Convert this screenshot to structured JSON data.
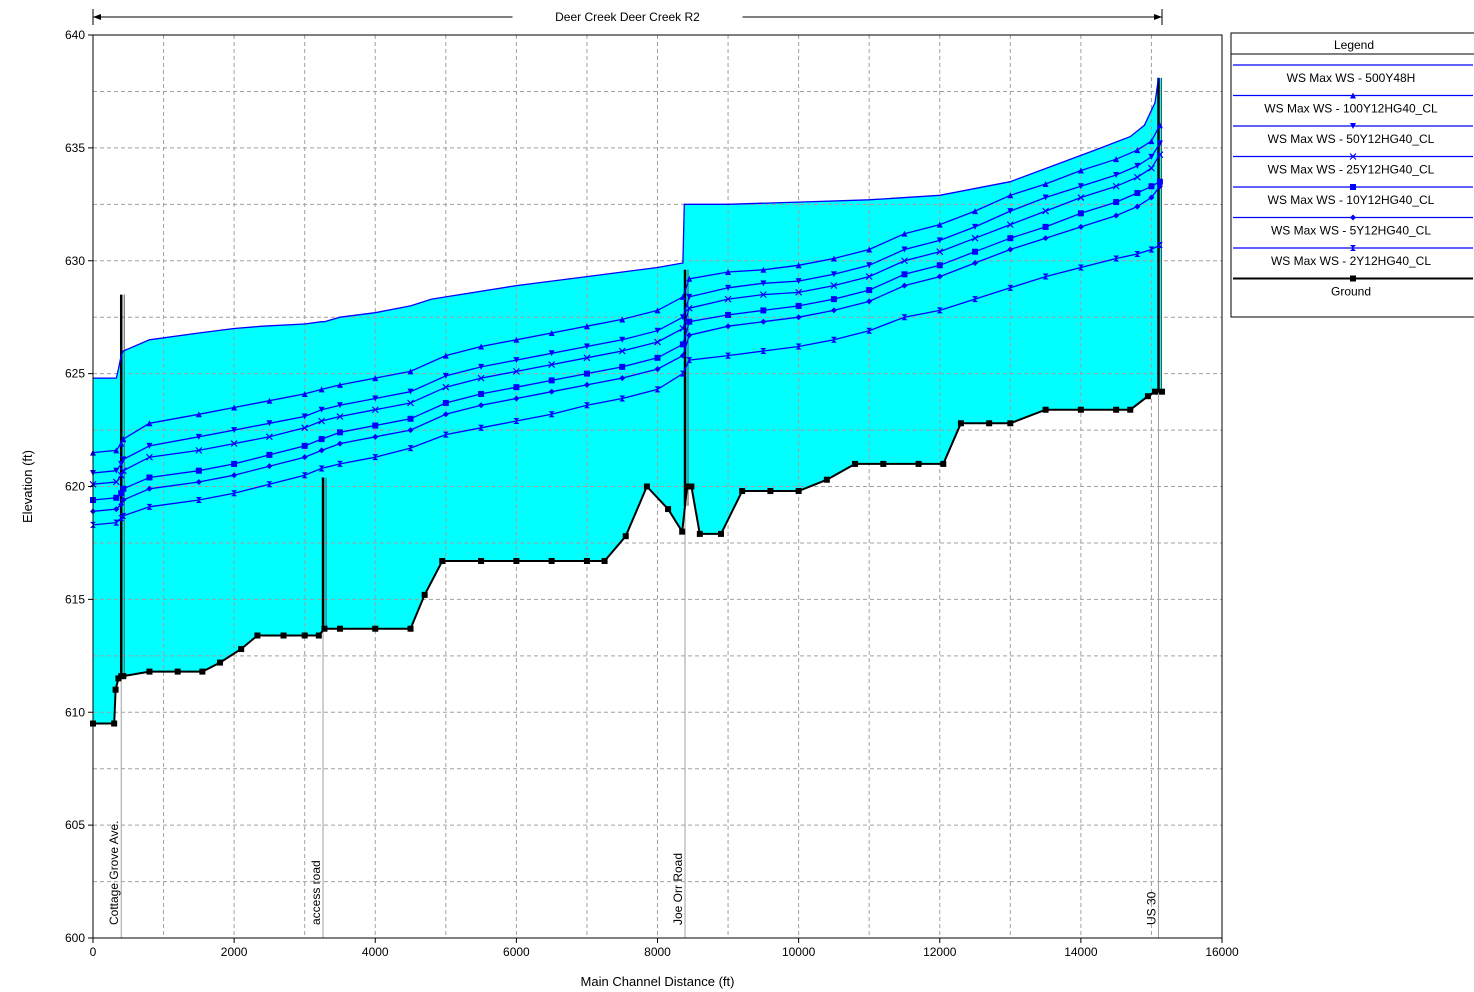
{
  "chart_data": {
    "type": "line",
    "title": "Deer Creek Deer Creek R2",
    "xlabel": "Main Channel Distance (ft)",
    "ylabel": "Elevation (ft)",
    "xlim": [
      0,
      16000
    ],
    "ylim": [
      600,
      640
    ],
    "xticks": [
      0,
      2000,
      4000,
      6000,
      8000,
      10000,
      12000,
      14000,
      16000
    ],
    "yticks": [
      600,
      605,
      610,
      615,
      620,
      625,
      630,
      635,
      640
    ],
    "grid": true,
    "legend_position": "top-right, outside plot",
    "legend_title": "Legend",
    "water_fill_color": "#00ffff",
    "reach_extent": [
      0,
      15150
    ],
    "series": [
      {
        "name": "WS  Max WS - 500Y48H",
        "color": "#0000ff",
        "marker": "none",
        "x": [
          0,
          330,
          360,
          400,
          430,
          800,
          1500,
          2000,
          2400,
          3000,
          3240,
          3280,
          3500,
          4000,
          4500,
          4800,
          5000,
          6000,
          7000,
          8000,
          8360,
          8380,
          8450,
          9000,
          10000,
          11000,
          12000,
          13000,
          13600,
          14200,
          14700,
          14900,
          15050,
          15100
        ],
        "y": [
          624.8,
          624.8,
          625.2,
          625.8,
          626.0,
          626.5,
          626.8,
          627.0,
          627.1,
          627.2,
          627.3,
          627.3,
          627.5,
          627.7,
          628.0,
          628.3,
          628.4,
          628.9,
          629.3,
          629.7,
          629.9,
          632.5,
          632.5,
          632.5,
          632.6,
          632.7,
          632.9,
          633.5,
          634.2,
          634.9,
          635.5,
          636.0,
          637.0,
          638.1
        ]
      },
      {
        "name": "WS  Max WS - 100Y12HG40_CL",
        "color": "#0000ff",
        "marker": "triangle",
        "x": [
          0,
          330,
          400,
          430,
          800,
          1500,
          2000,
          2500,
          3000,
          3240,
          3500,
          4000,
          4500,
          5000,
          5500,
          6000,
          6500,
          7000,
          7500,
          8000,
          8360,
          8450,
          9000,
          9500,
          10000,
          10500,
          11000,
          11500,
          12000,
          12500,
          13000,
          13500,
          14000,
          14500,
          14800,
          15000,
          15120
        ],
        "y": [
          621.5,
          621.6,
          621.9,
          622.1,
          622.8,
          623.2,
          623.5,
          623.8,
          624.1,
          624.3,
          624.5,
          624.8,
          625.1,
          625.8,
          626.2,
          626.5,
          626.8,
          627.1,
          627.4,
          627.8,
          628.4,
          629.2,
          629.5,
          629.6,
          629.8,
          630.1,
          630.5,
          631.2,
          631.6,
          632.2,
          632.9,
          633.4,
          634.0,
          634.5,
          634.9,
          635.3,
          636.0
        ]
      },
      {
        "name": "WS  Max WS - 50Y12HG40_CL",
        "color": "#0000ff",
        "marker": "triangle-down",
        "x": [
          0,
          330,
          400,
          430,
          800,
          1500,
          2000,
          2500,
          3000,
          3240,
          3500,
          4000,
          4500,
          5000,
          5500,
          6000,
          6500,
          7000,
          7500,
          8000,
          8360,
          8450,
          9000,
          9500,
          10000,
          10500,
          11000,
          11500,
          12000,
          12500,
          13000,
          13500,
          14000,
          14500,
          14800,
          15000,
          15120
        ],
        "y": [
          620.6,
          620.7,
          621.0,
          621.2,
          621.8,
          622.2,
          622.5,
          622.8,
          623.1,
          623.4,
          623.6,
          623.9,
          624.2,
          624.9,
          625.3,
          625.6,
          625.9,
          626.2,
          626.5,
          626.9,
          627.5,
          628.4,
          628.8,
          629.0,
          629.1,
          629.4,
          629.8,
          630.5,
          630.9,
          631.5,
          632.2,
          632.8,
          633.3,
          633.8,
          634.2,
          634.6,
          635.2
        ]
      },
      {
        "name": "WS  Max WS - 25Y12HG40_CL",
        "color": "#0000ff",
        "marker": "x",
        "x": [
          0,
          330,
          400,
          430,
          800,
          1500,
          2000,
          2500,
          3000,
          3240,
          3500,
          4000,
          4500,
          5000,
          5500,
          6000,
          6500,
          7000,
          7500,
          8000,
          8360,
          8450,
          9000,
          9500,
          10000,
          10500,
          11000,
          11500,
          12000,
          12500,
          13000,
          13500,
          14000,
          14500,
          14800,
          15000,
          15120
        ],
        "y": [
          620.1,
          620.2,
          620.5,
          620.7,
          621.3,
          621.6,
          621.9,
          622.2,
          622.6,
          622.9,
          623.1,
          623.4,
          623.7,
          624.4,
          624.8,
          625.1,
          625.4,
          625.7,
          626.0,
          626.4,
          627.0,
          627.9,
          628.3,
          628.5,
          628.6,
          628.9,
          629.3,
          630.0,
          630.4,
          631.0,
          631.6,
          632.2,
          632.8,
          633.3,
          633.7,
          634.1,
          634.7
        ]
      },
      {
        "name": "WS  Max WS - 10Y12HG40_CL",
        "color": "#0000ff",
        "marker": "square",
        "x": [
          0,
          330,
          400,
          430,
          800,
          1500,
          2000,
          2500,
          3000,
          3240,
          3500,
          4000,
          4500,
          5000,
          5500,
          6000,
          6500,
          7000,
          7500,
          8000,
          8360,
          8450,
          9000,
          9500,
          10000,
          10500,
          11000,
          11500,
          12000,
          12500,
          13000,
          13500,
          14000,
          14500,
          14800,
          15000,
          15120
        ],
        "y": [
          619.4,
          619.5,
          619.7,
          619.9,
          620.4,
          620.7,
          621.0,
          621.4,
          621.8,
          622.1,
          622.4,
          622.7,
          623.0,
          623.7,
          624.1,
          624.4,
          624.7,
          625.0,
          625.3,
          625.7,
          626.3,
          627.3,
          627.6,
          627.8,
          628.0,
          628.3,
          628.7,
          629.4,
          629.8,
          630.4,
          631.0,
          631.5,
          632.1,
          632.6,
          633.0,
          633.3,
          633.5
        ]
      },
      {
        "name": "WS  Max WS - 5Y12HG40_CL",
        "color": "#0000ff",
        "marker": "diamond",
        "x": [
          0,
          330,
          400,
          430,
          800,
          1500,
          2000,
          2500,
          3000,
          3240,
          3500,
          4000,
          4500,
          5000,
          5500,
          6000,
          6500,
          7000,
          7500,
          8000,
          8360,
          8450,
          9000,
          9500,
          10000,
          10500,
          11000,
          11500,
          12000,
          12500,
          13000,
          13500,
          14000,
          14500,
          14800,
          15000,
          15120
        ],
        "y": [
          618.9,
          619.0,
          619.2,
          619.4,
          619.9,
          620.2,
          620.5,
          620.9,
          621.3,
          621.6,
          621.9,
          622.2,
          622.5,
          623.2,
          623.6,
          623.9,
          624.2,
          624.5,
          624.8,
          625.2,
          625.8,
          626.7,
          627.1,
          627.3,
          627.5,
          627.8,
          628.2,
          628.9,
          629.3,
          629.9,
          630.5,
          631.0,
          631.5,
          632.0,
          632.4,
          632.8,
          633.3
        ]
      },
      {
        "name": "WS  Max WS - 2Y12HG40_CL",
        "color": "#0000ff",
        "marker": "hourglass",
        "x": [
          0,
          330,
          400,
          430,
          800,
          1500,
          2000,
          2500,
          3000,
          3240,
          3500,
          4000,
          4500,
          5000,
          5500,
          6000,
          6500,
          7000,
          7500,
          8000,
          8360,
          8450,
          9000,
          9500,
          10000,
          10500,
          11000,
          11500,
          12000,
          12500,
          13000,
          13500,
          14000,
          14500,
          14800,
          15000,
          15120
        ],
        "y": [
          618.3,
          618.4,
          618.6,
          618.7,
          619.1,
          619.4,
          619.7,
          620.1,
          620.5,
          620.8,
          621.0,
          621.3,
          621.7,
          622.3,
          622.6,
          622.9,
          623.2,
          623.6,
          623.9,
          624.3,
          625.0,
          625.6,
          625.8,
          626.0,
          626.2,
          626.5,
          626.9,
          627.5,
          627.8,
          628.3,
          628.8,
          629.3,
          629.7,
          630.1,
          630.3,
          630.5,
          630.7
        ]
      },
      {
        "name": "Ground",
        "color": "#000000",
        "marker": "square-black",
        "x": [
          0,
          300,
          320,
          360,
          400,
          430,
          800,
          1200,
          1550,
          1800,
          2100,
          2330,
          2700,
          3000,
          3200,
          3280,
          3500,
          4000,
          4500,
          4700,
          4950,
          5500,
          6000,
          6500,
          7000,
          7250,
          7550,
          7850,
          8150,
          8350,
          8420,
          8480,
          8600,
          8900,
          9200,
          9600,
          10000,
          10400,
          10800,
          11200,
          11700,
          12050,
          12300,
          12700,
          13000,
          13500,
          14000,
          14500,
          14700,
          14950,
          15050,
          15150
        ],
        "y": [
          609.5,
          609.5,
          611.0,
          611.5,
          611.6,
          611.6,
          611.8,
          611.8,
          611.8,
          612.2,
          612.8,
          613.4,
          613.4,
          613.4,
          613.4,
          613.7,
          613.7,
          613.7,
          613.7,
          615.2,
          616.7,
          616.7,
          616.7,
          616.7,
          616.7,
          616.7,
          617.8,
          620.0,
          619.0,
          618.0,
          620.0,
          620.0,
          617.9,
          617.9,
          619.8,
          619.8,
          619.8,
          620.3,
          621.0,
          621.0,
          621.0,
          621.0,
          622.8,
          622.8,
          622.8,
          623.4,
          623.4,
          623.4,
          623.4,
          624.0,
          624.2,
          624.2
        ]
      }
    ],
    "bridges": [
      {
        "label": "Cottage Grove Ave.",
        "x": 400,
        "deck_top": 628.5
      },
      {
        "label": "access road",
        "x": 3260,
        "deck_top": 620.4
      },
      {
        "label": "Joe Orr Road",
        "x": 8390,
        "deck_top": 629.6
      },
      {
        "label": "US 30",
        "x": 15100,
        "deck_top": 638.1
      }
    ]
  }
}
